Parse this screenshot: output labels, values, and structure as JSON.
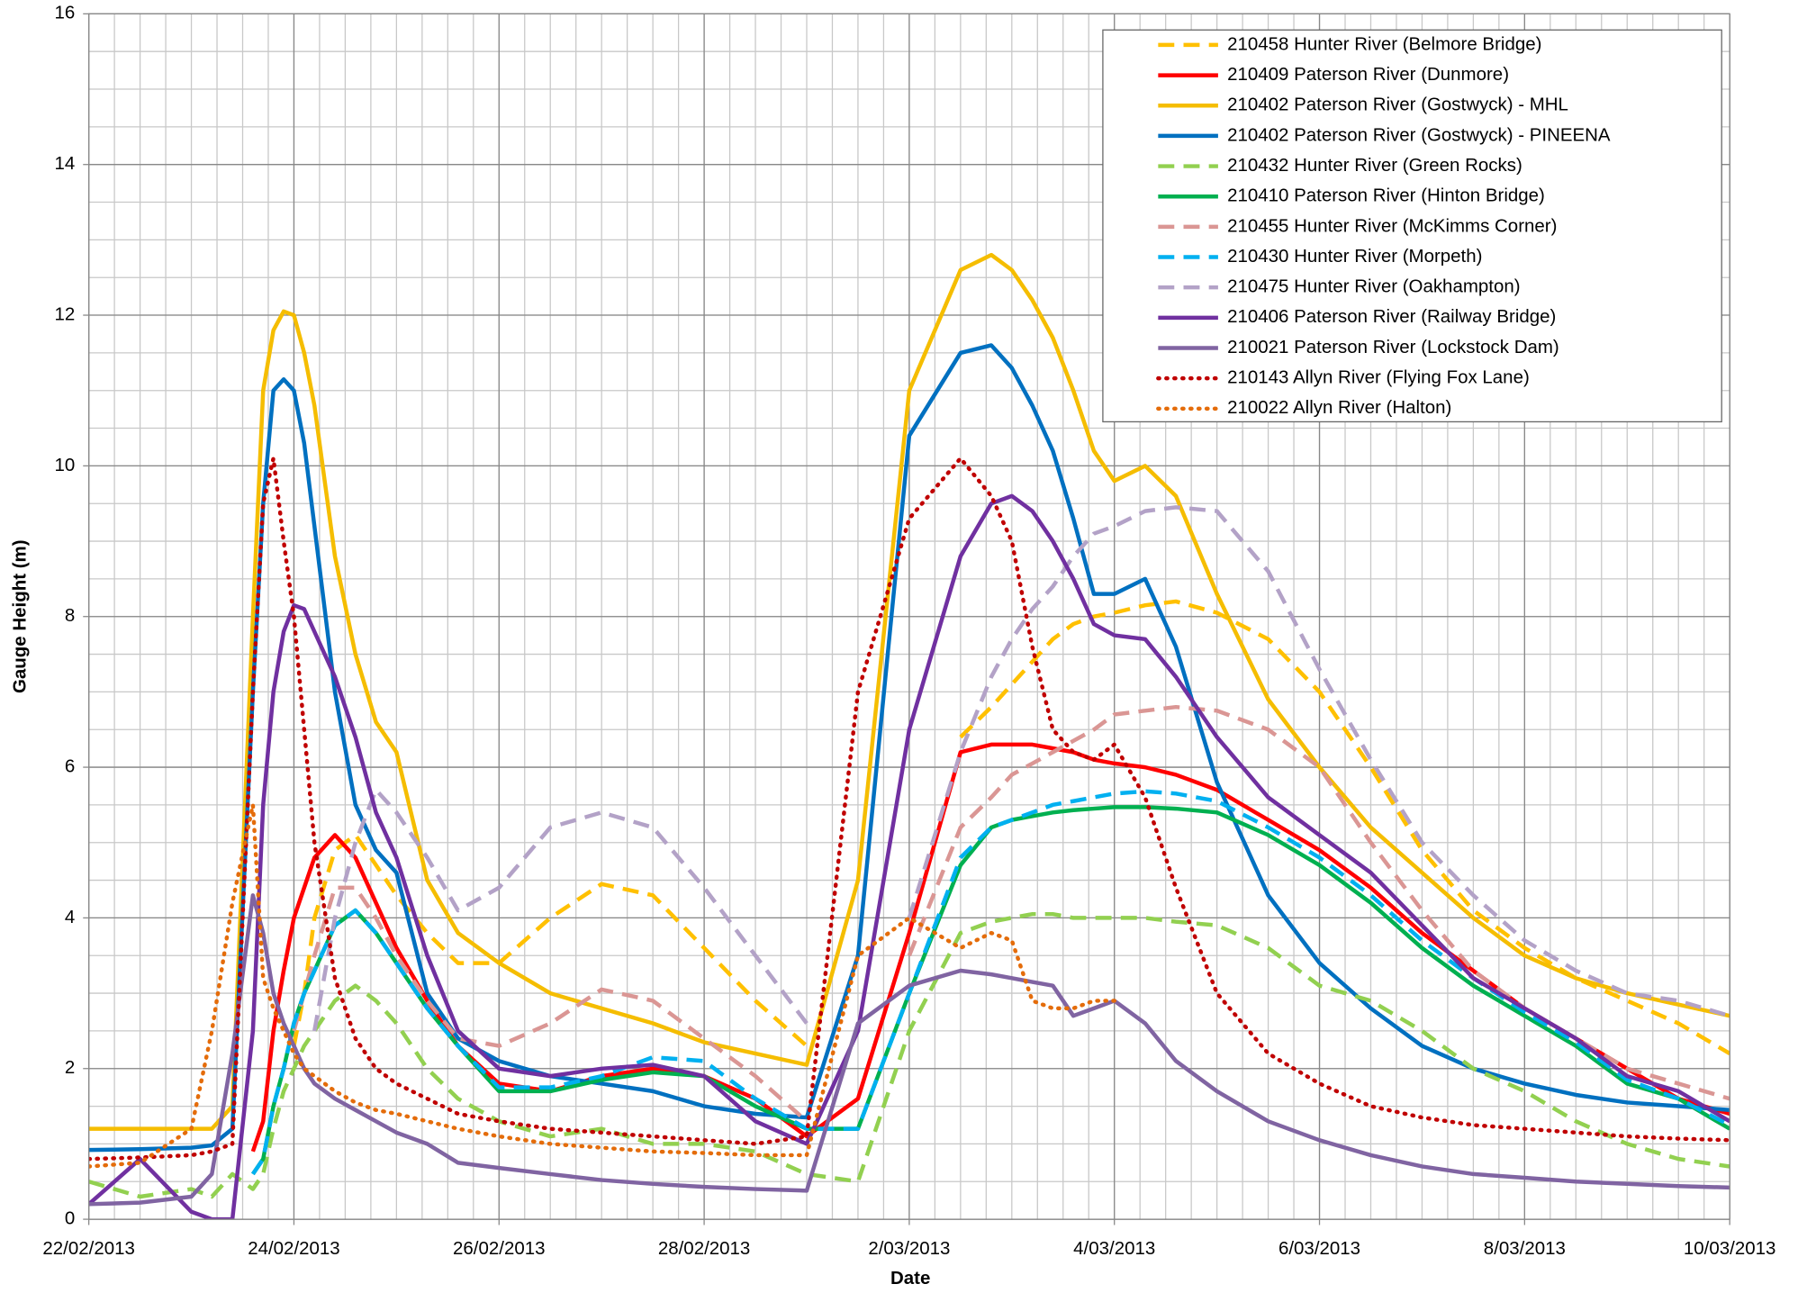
{
  "chart_data": {
    "type": "line",
    "xlabel": "Date",
    "ylabel": "Gauge Height (m)",
    "xlim": [
      0,
      16
    ],
    "ylim": [
      0,
      16
    ],
    "xticks": [
      {
        "value": 0,
        "label": "22/02/2013"
      },
      {
        "value": 2,
        "label": "24/02/2013"
      },
      {
        "value": 4,
        "label": "26/02/2013"
      },
      {
        "value": 6,
        "label": "28/02/2013"
      },
      {
        "value": 8,
        "label": "2/03/2013"
      },
      {
        "value": 10,
        "label": "4/03/2013"
      },
      {
        "value": 12,
        "label": "6/03/2013"
      },
      {
        "value": 14,
        "label": "8/03/2013"
      },
      {
        "value": 16,
        "label": "10/03/2013"
      }
    ],
    "yticks": [
      0,
      2,
      4,
      6,
      8,
      10,
      12,
      14,
      16
    ],
    "grid": true,
    "minor_grid": {
      "x": 0.25,
      "y": 0.5
    },
    "legend": "upper right",
    "x": [
      0,
      0.5,
      1,
      1.2,
      1.4,
      1.6,
      1.7,
      1.8,
      1.9,
      2.0,
      2.1,
      2.2,
      2.4,
      2.6,
      2.8,
      3.0,
      3.3,
      3.6,
      4,
      4.5,
      5,
      5.5,
      6,
      6.5,
      7,
      7.5,
      8,
      8.5,
      8.8,
      9,
      9.2,
      9.4,
      9.6,
      9.8,
      10,
      10.3,
      10.6,
      11,
      11.5,
      12,
      12.5,
      13,
      13.5,
      14,
      14.5,
      15,
      15.5,
      16
    ],
    "series": [
      {
        "name": "210458 Hunter River (Belmore Bridge)",
        "color": "#ffc000",
        "dash": "dashed",
        "values": [
          null,
          null,
          null,
          null,
          null,
          null,
          null,
          null,
          null,
          2.3,
          3.0,
          4.0,
          4.9,
          5.1,
          4.7,
          4.3,
          3.8,
          3.4,
          3.4,
          4.0,
          4.45,
          4.3,
          3.6,
          2.9,
          2.3,
          null,
          null,
          6.4,
          6.8,
          7.1,
          7.4,
          7.7,
          7.9,
          8.0,
          8.05,
          8.15,
          8.2,
          8.05,
          7.7,
          7.0,
          6.0,
          4.9,
          4.1,
          3.6,
          3.2,
          2.9,
          2.6,
          2.2
        ]
      },
      {
        "name": "210409 Paterson River (Dunmore)",
        "color": "#ff0000",
        "dash": "solid",
        "values": [
          null,
          null,
          null,
          null,
          null,
          0.9,
          1.3,
          2.5,
          3.3,
          4.0,
          4.4,
          4.8,
          5.1,
          4.8,
          4.2,
          3.6,
          2.9,
          2.3,
          1.8,
          1.7,
          1.9,
          2.0,
          1.9,
          1.6,
          1.1,
          1.6,
          3.8,
          6.2,
          6.3,
          6.3,
          6.3,
          6.25,
          6.2,
          6.1,
          6.05,
          6.0,
          5.9,
          5.7,
          5.3,
          4.9,
          4.4,
          3.8,
          3.3,
          2.8,
          2.4,
          2.0,
          1.6,
          1.4
        ]
      },
      {
        "name": "210402 Paterson River (Gostwyck) - MHL",
        "color": "#f5bd00",
        "dash": "solid",
        "values": [
          1.2,
          1.2,
          1.2,
          1.2,
          1.5,
          8,
          11,
          11.8,
          12.05,
          12.0,
          11.5,
          10.8,
          8.8,
          7.5,
          6.6,
          6.2,
          4.5,
          3.8,
          3.4,
          3.0,
          2.8,
          2.6,
          2.35,
          2.2,
          2.05,
          4.5,
          11,
          12.6,
          12.8,
          12.6,
          12.2,
          11.7,
          11.0,
          10.2,
          9.8,
          10.0,
          9.6,
          8.3,
          6.9,
          6.0,
          5.2,
          4.6,
          4.0,
          3.5,
          3.2,
          3.0,
          2.85,
          2.7
        ]
      },
      {
        "name": "210402 Paterson River (Gostwyck) - PINEENA",
        "color": "#0070c0",
        "dash": "solid",
        "values": [
          0.92,
          0.93,
          0.95,
          0.98,
          1.2,
          7,
          9.5,
          11.0,
          11.15,
          11.0,
          10.3,
          9.2,
          7,
          5.5,
          4.9,
          4.6,
          3.0,
          2.4,
          2.1,
          1.9,
          1.8,
          1.7,
          1.5,
          1.4,
          1.35,
          3.5,
          10.4,
          11.5,
          11.6,
          11.3,
          10.8,
          10.2,
          9.3,
          8.3,
          8.3,
          8.5,
          7.6,
          5.8,
          4.3,
          3.4,
          2.8,
          2.3,
          2.0,
          1.8,
          1.65,
          1.55,
          1.5,
          1.45
        ]
      },
      {
        "name": "210432 Hunter River (Green Rocks)",
        "color": "#92d050",
        "dash": "dashed",
        "values": [
          0.5,
          0.3,
          0.4,
          0.3,
          0.6,
          0.4,
          0.6,
          1.2,
          1.7,
          2.0,
          2.3,
          2.5,
          2.9,
          3.1,
          2.9,
          2.6,
          2.0,
          1.6,
          1.3,
          1.1,
          1.2,
          1.0,
          1.0,
          0.9,
          0.6,
          0.5,
          2.5,
          3.8,
          3.95,
          4.0,
          4.05,
          4.05,
          4.0,
          4.0,
          4.0,
          4.0,
          3.95,
          3.9,
          3.6,
          3.1,
          2.9,
          2.5,
          2.0,
          1.7,
          1.3,
          1.0,
          0.8,
          0.7
        ]
      },
      {
        "name": "210410 Paterson River (Hinton Bridge)",
        "color": "#00b050",
        "dash": "solid",
        "values": [
          null,
          null,
          null,
          null,
          null,
          0.6,
          0.8,
          1.5,
          2.0,
          2.6,
          3.0,
          3.3,
          3.9,
          4.1,
          3.8,
          3.4,
          2.8,
          2.3,
          1.7,
          1.7,
          1.85,
          1.95,
          1.9,
          1.5,
          1.2,
          1.2,
          3.0,
          4.7,
          5.2,
          5.3,
          5.35,
          5.4,
          5.43,
          5.45,
          5.47,
          5.47,
          5.45,
          5.4,
          5.1,
          4.7,
          4.2,
          3.6,
          3.1,
          2.7,
          2.3,
          1.8,
          1.6,
          1.2
        ]
      },
      {
        "name": "210455 Hunter River (McKimms Corner)",
        "color": "#da9694",
        "dash": "dashed",
        "values": [
          null,
          null,
          null,
          null,
          null,
          null,
          null,
          null,
          null,
          2.5,
          3.0,
          3.5,
          4.4,
          4.4,
          4.0,
          3.5,
          2.9,
          2.4,
          2.3,
          2.6,
          3.05,
          2.9,
          2.4,
          1.9,
          1.3,
          null,
          3.5,
          5.2,
          5.6,
          5.9,
          6.05,
          6.2,
          6.35,
          6.5,
          6.7,
          6.75,
          6.8,
          6.75,
          6.5,
          6.0,
          5.0,
          4.1,
          3.3,
          2.8,
          2.4,
          2.0,
          1.8,
          1.6
        ]
      },
      {
        "name": "210430 Hunter River (Morpeth)",
        "color": "#00b0f0",
        "dash": "dashed",
        "values": [
          null,
          null,
          null,
          null,
          null,
          0.6,
          0.8,
          1.5,
          2.0,
          2.6,
          3.0,
          3.3,
          3.9,
          4.1,
          3.8,
          3.4,
          2.8,
          2.3,
          1.75,
          1.75,
          1.9,
          2.15,
          2.1,
          1.6,
          1.2,
          1.2,
          3.0,
          4.8,
          5.2,
          5.3,
          5.4,
          5.5,
          5.55,
          5.6,
          5.65,
          5.68,
          5.65,
          5.55,
          5.2,
          4.8,
          4.3,
          3.7,
          3.2,
          2.75,
          2.35,
          1.85,
          1.6,
          1.25
        ]
      },
      {
        "name": "210475 Hunter River (Oakhampton)",
        "color": "#b3a2c7",
        "dash": "dashed",
        "values": [
          null,
          null,
          null,
          null,
          null,
          null,
          null,
          null,
          null,
          null,
          null,
          2.5,
          4.0,
          5.0,
          5.7,
          5.4,
          4.8,
          4.1,
          4.4,
          5.2,
          5.4,
          5.2,
          4.4,
          3.5,
          2.6,
          null,
          4.0,
          6.2,
          7.2,
          7.7,
          8.1,
          8.4,
          8.8,
          9.1,
          9.2,
          9.4,
          9.45,
          9.4,
          8.6,
          7.3,
          6.1,
          5.0,
          4.3,
          3.7,
          3.3,
          3.0,
          2.9,
          2.7
        ]
      },
      {
        "name": "210406 Paterson River (Railway Bridge)",
        "color": "#7030a0",
        "dash": "solid",
        "values": [
          0.2,
          0.8,
          0.1,
          0.0,
          0.0,
          2.5,
          5.5,
          7.0,
          7.8,
          8.15,
          8.1,
          7.8,
          7.2,
          6.4,
          5.4,
          4.8,
          3.5,
          2.5,
          2.0,
          1.9,
          2.0,
          2.05,
          1.9,
          1.3,
          1.0,
          2.5,
          6.5,
          8.8,
          9.5,
          9.6,
          9.4,
          9.0,
          8.5,
          7.9,
          7.75,
          7.7,
          7.2,
          6.4,
          5.6,
          5.1,
          4.6,
          3.9,
          3.2,
          2.8,
          2.4,
          1.9,
          1.7,
          1.3
        ]
      },
      {
        "name": "210021 Paterson River (Lockstock Dam)",
        "color": "#8064a2",
        "dash": "solid",
        "values": [
          0.2,
          0.22,
          0.3,
          0.6,
          2.2,
          4.3,
          3.8,
          3.0,
          2.6,
          2.3,
          2.0,
          1.8,
          1.6,
          1.45,
          1.3,
          1.15,
          1.0,
          0.75,
          0.68,
          0.6,
          0.52,
          0.47,
          0.43,
          0.4,
          0.38,
          2.6,
          3.1,
          3.3,
          3.25,
          3.2,
          3.15,
          3.1,
          2.7,
          2.8,
          2.9,
          2.6,
          2.1,
          1.7,
          1.3,
          1.05,
          0.85,
          0.7,
          0.6,
          0.55,
          0.5,
          0.47,
          0.44,
          0.42
        ]
      },
      {
        "name": "210143 Allyn River (Flying Fox Lane)",
        "color": "#c00000",
        "dash": "dotted",
        "values": [
          0.8,
          0.82,
          0.85,
          0.9,
          1.0,
          7,
          9.5,
          10.1,
          9.0,
          8.0,
          6.5,
          5.0,
          3.2,
          2.4,
          2.0,
          1.8,
          1.6,
          1.4,
          1.3,
          1.2,
          1.15,
          1.1,
          1.05,
          1.0,
          1.1,
          7.0,
          9.3,
          10.1,
          9.6,
          9.0,
          7.6,
          6.5,
          6.2,
          6.1,
          6.3,
          5.6,
          4.4,
          3.0,
          2.2,
          1.8,
          1.5,
          1.35,
          1.25,
          1.2,
          1.15,
          1.1,
          1.07,
          1.05
        ]
      },
      {
        "name": "210022 Allyn River (Halton)",
        "color": "#e46c0a",
        "dash": "dotted",
        "values": [
          0.7,
          0.75,
          1.2,
          2.5,
          4.2,
          5.5,
          3.2,
          2.8,
          2.5,
          2.2,
          2.0,
          1.9,
          1.7,
          1.55,
          1.45,
          1.4,
          1.3,
          1.2,
          1.1,
          1.0,
          0.95,
          0.9,
          0.88,
          0.85,
          0.85,
          3.5,
          4.0,
          3.6,
          3.8,
          3.7,
          2.9,
          2.8,
          2.8,
          2.9,
          2.9,
          null,
          null,
          null,
          null,
          null,
          null,
          null,
          null,
          null,
          null,
          null,
          null,
          null
        ]
      }
    ]
  }
}
